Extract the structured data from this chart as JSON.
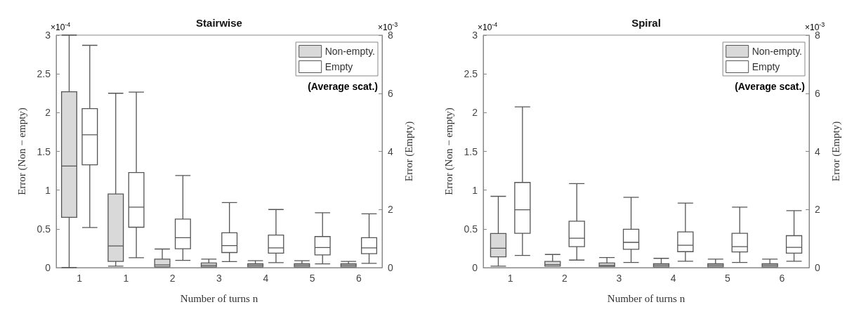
{
  "chart_data": [
    {
      "type": "box",
      "title": "Stairwise",
      "xlabel": "Number of turns n",
      "ylabel": "Error (Non − empty)",
      "y2label": "Error (Empty)",
      "categories": [
        "1",
        "1",
        "2",
        "3",
        "4",
        "5",
        "6"
      ],
      "ylim": [
        0,
        3
      ],
      "yticks": [
        0,
        0.5,
        1,
        1.5,
        2,
        2.5,
        3
      ],
      "y2lim": [
        0,
        8
      ],
      "y2ticks": [
        0,
        2,
        4,
        6,
        8
      ],
      "series": [
        {
          "name": "Non-empty.",
          "color": "#d9d9d9",
          "boxes": [
            {
              "low": 0,
              "q1": 0.65,
              "median": 1.31,
              "q3": 2.27,
              "high": 3.0
            },
            {
              "low": 0.02,
              "q1": 0.08,
              "median": 0.28,
              "q3": 0.95,
              "high": 2.25
            },
            {
              "low": 0.01,
              "q1": 0.01,
              "median": 0.035,
              "q3": 0.11,
              "high": 0.24
            },
            {
              "low": 0.01,
              "q1": 0.01,
              "median": 0.03,
              "q3": 0.06,
              "high": 0.11
            },
            {
              "low": 0.01,
              "q1": 0.01,
              "median": 0.03,
              "q3": 0.05,
              "high": 0.09
            },
            {
              "low": 0.01,
              "q1": 0.01,
              "median": 0.03,
              "q3": 0.05,
              "high": 0.09
            },
            {
              "low": 0.01,
              "q1": 0.01,
              "median": 0.03,
              "q3": 0.05,
              "high": 0.08
            }
          ]
        },
        {
          "name": "Empty",
          "color": "#ffffff",
          "axis": "y2",
          "boxes": [
            {
              "low": 1.38,
              "q1": 3.54,
              "median": 4.57,
              "q3": 5.47,
              "high": 7.65
            },
            {
              "low": 0.34,
              "q1": 1.39,
              "median": 2.08,
              "q3": 3.27,
              "high": 6.04
            },
            {
              "low": 0.25,
              "q1": 0.65,
              "median": 1.03,
              "q3": 1.67,
              "high": 3.17
            },
            {
              "low": 0.21,
              "q1": 0.52,
              "median": 0.76,
              "q3": 1.2,
              "high": 2.24
            },
            {
              "low": 0.17,
              "q1": 0.5,
              "median": 0.68,
              "q3": 1.12,
              "high": 2.0
            },
            {
              "low": 0.13,
              "q1": 0.44,
              "median": 0.69,
              "q3": 1.07,
              "high": 1.89
            },
            {
              "low": 0.15,
              "q1": 0.48,
              "median": 0.68,
              "q3": 1.03,
              "high": 1.85
            }
          ]
        }
      ],
      "legend": "top right",
      "grid": false,
      "annotations": [
        "×10$^{-4}$",
        "×10$^{-3}$",
        "(Average scat.)"
      ]
    },
    {
      "type": "box",
      "title": "Spiral",
      "xlabel": "Number of turns n",
      "ylabel": "Error (Non − empty)",
      "y2label": "Error (Empty)",
      "categories": [
        "1",
        "2",
        "3",
        "4",
        "5",
        "6"
      ],
      "ylim": [
        0,
        3
      ],
      "yticks": [
        0,
        0.5,
        1,
        1.5,
        2,
        2.5,
        3
      ],
      "y2lim": [
        0,
        8
      ],
      "y2ticks": [
        0,
        2,
        4,
        6,
        8
      ],
      "series": [
        {
          "name": "Non-empty.",
          "color": "#d9d9d9",
          "boxes": [
            {
              "low": 0.02,
              "q1": 0.14,
              "median": 0.25,
              "q3": 0.44,
              "high": 0.92
            },
            {
              "low": 0.02,
              "q1": 0.02,
              "median": 0.04,
              "q3": 0.08,
              "high": 0.17
            },
            {
              "low": 0.015,
              "q1": 0.015,
              "median": 0.03,
              "q3": 0.06,
              "high": 0.13
            },
            {
              "low": 0.01,
              "q1": 0.01,
              "median": 0.03,
              "q3": 0.05,
              "high": 0.12
            },
            {
              "low": 0.01,
              "q1": 0.01,
              "median": 0.03,
              "q3": 0.05,
              "high": 0.11
            },
            {
              "low": 0.01,
              "q1": 0.01,
              "median": 0.03,
              "q3": 0.05,
              "high": 0.11
            }
          ]
        },
        {
          "name": "Empty",
          "color": "#ffffff",
          "axis": "y2",
          "boxes": [
            {
              "low": 0.42,
              "q1": 1.18,
              "median": 1.99,
              "q3": 2.93,
              "high": 5.53
            },
            {
              "low": 0.26,
              "q1": 0.72,
              "median": 1.01,
              "q3": 1.6,
              "high": 2.89
            },
            {
              "low": 0.18,
              "q1": 0.63,
              "median": 0.87,
              "q3": 1.32,
              "high": 2.42
            },
            {
              "low": 0.22,
              "q1": 0.55,
              "median": 0.77,
              "q3": 1.23,
              "high": 2.22
            },
            {
              "low": 0.18,
              "q1": 0.54,
              "median": 0.72,
              "q3": 1.18,
              "high": 2.08
            },
            {
              "low": 0.22,
              "q1": 0.5,
              "median": 0.7,
              "q3": 1.1,
              "high": 1.96
            }
          ]
        }
      ],
      "legend": "top right",
      "grid": false,
      "annotations": [
        "×10$^{-4}$",
        "×10$^{-3}$",
        "(Average scat.)"
      ]
    }
  ]
}
